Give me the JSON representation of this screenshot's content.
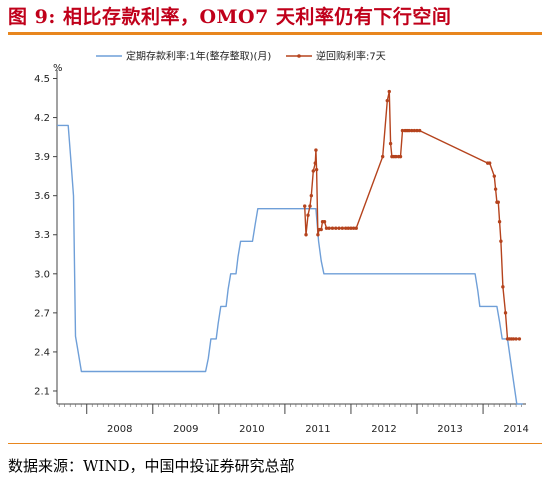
{
  "title": "图 9: 相比存款利率，OMO7 天利率仍有下行空间",
  "source": "数据来源：WIND，中国中投证券研究总部",
  "chart_data": {
    "type": "line",
    "y_unit": "%",
    "ylim": [
      2.0,
      4.55
    ],
    "yticks": [
      2.1,
      2.4,
      2.7,
      3.0,
      3.3,
      3.6,
      3.9,
      4.2,
      4.5
    ],
    "ytick_labels": [
      "2.1",
      "2.4",
      "2.7",
      "3.0",
      "3.3",
      "3.6",
      "3.9",
      "4.2",
      "4.5"
    ],
    "xlim": [
      2007.55,
      2014.65
    ],
    "xtick_labels": [
      "2008",
      "2009",
      "2010",
      "2011",
      "2012",
      "2013",
      "2014"
    ],
    "legend_position": "top",
    "series": [
      {
        "name": "定期存款利率:1年(整存整取)(月)",
        "color": "#6f9fd8",
        "marker": false,
        "points": [
          [
            2007.55,
            4.14
          ],
          [
            2007.72,
            4.14
          ],
          [
            2007.76,
            3.87
          ],
          [
            2007.8,
            3.6
          ],
          [
            2007.83,
            2.52
          ],
          [
            2007.86,
            2.43
          ],
          [
            2007.92,
            2.25
          ],
          [
            2009.8,
            2.25
          ],
          [
            2009.84,
            2.35
          ],
          [
            2009.88,
            2.5
          ],
          [
            2009.96,
            2.5
          ],
          [
            2009.99,
            2.62
          ],
          [
            2010.03,
            2.75
          ],
          [
            2010.11,
            2.75
          ],
          [
            2010.14,
            2.88
          ],
          [
            2010.18,
            3.0
          ],
          [
            2010.26,
            3.0
          ],
          [
            2010.29,
            3.13
          ],
          [
            2010.33,
            3.25
          ],
          [
            2010.51,
            3.25
          ],
          [
            2010.55,
            3.38
          ],
          [
            2010.59,
            3.5
          ],
          [
            2011.47,
            3.5
          ],
          [
            2011.51,
            3.25
          ],
          [
            2011.55,
            3.1
          ],
          [
            2011.59,
            3.0
          ],
          [
            2013.88,
            3.0
          ],
          [
            2013.92,
            2.87
          ],
          [
            2013.95,
            2.75
          ],
          [
            2014.21,
            2.75
          ],
          [
            2014.25,
            2.63
          ],
          [
            2014.29,
            2.5
          ],
          [
            2014.37,
            2.5
          ],
          [
            2014.44,
            2.25
          ],
          [
            2014.51,
            2.0
          ],
          [
            2014.6,
            2.0
          ]
        ]
      },
      {
        "name": "逆回购利率:7天",
        "color": "#b5431d",
        "marker": true,
        "points": [
          [
            2011.3,
            3.52
          ],
          [
            2011.32,
            3.3
          ],
          [
            2011.35,
            3.45
          ],
          [
            2011.38,
            3.52
          ],
          [
            2011.4,
            3.6
          ],
          [
            2011.43,
            3.79
          ],
          [
            2011.46,
            3.85
          ],
          [
            2011.47,
            3.95
          ],
          [
            2011.48,
            3.8
          ],
          [
            2011.5,
            3.3
          ],
          [
            2011.52,
            3.34
          ],
          [
            2011.55,
            3.34
          ],
          [
            2011.57,
            3.4
          ],
          [
            2011.6,
            3.4
          ],
          [
            2011.63,
            3.35
          ],
          [
            2011.67,
            3.35
          ],
          [
            2011.72,
            3.35
          ],
          [
            2011.77,
            3.35
          ],
          [
            2011.82,
            3.35
          ],
          [
            2011.87,
            3.35
          ],
          [
            2011.92,
            3.35
          ],
          [
            2011.96,
            3.35
          ],
          [
            2012.0,
            3.35
          ],
          [
            2012.04,
            3.35
          ],
          [
            2012.08,
            3.35
          ],
          [
            2012.48,
            3.9
          ],
          [
            2012.55,
            4.33
          ],
          [
            2012.58,
            4.4
          ],
          [
            2012.6,
            4.0
          ],
          [
            2012.62,
            3.9
          ],
          [
            2012.65,
            3.9
          ],
          [
            2012.68,
            3.9
          ],
          [
            2012.72,
            3.9
          ],
          [
            2012.75,
            3.9
          ],
          [
            2012.78,
            4.1
          ],
          [
            2012.82,
            4.1
          ],
          [
            2012.85,
            4.1
          ],
          [
            2012.88,
            4.1
          ],
          [
            2012.92,
            4.1
          ],
          [
            2012.96,
            4.1
          ],
          [
            2013.0,
            4.1
          ],
          [
            2013.04,
            4.1
          ],
          [
            2014.07,
            3.85
          ],
          [
            2014.1,
            3.85
          ],
          [
            2014.17,
            3.75
          ],
          [
            2014.19,
            3.65
          ],
          [
            2014.21,
            3.55
          ],
          [
            2014.23,
            3.55
          ],
          [
            2014.25,
            3.4
          ],
          [
            2014.27,
            3.25
          ],
          [
            2014.3,
            2.9
          ],
          [
            2014.34,
            2.7
          ],
          [
            2014.37,
            2.5
          ],
          [
            2014.4,
            2.5
          ],
          [
            2014.43,
            2.5
          ],
          [
            2014.46,
            2.5
          ],
          [
            2014.5,
            2.5
          ],
          [
            2014.55,
            2.5
          ]
        ]
      }
    ]
  }
}
